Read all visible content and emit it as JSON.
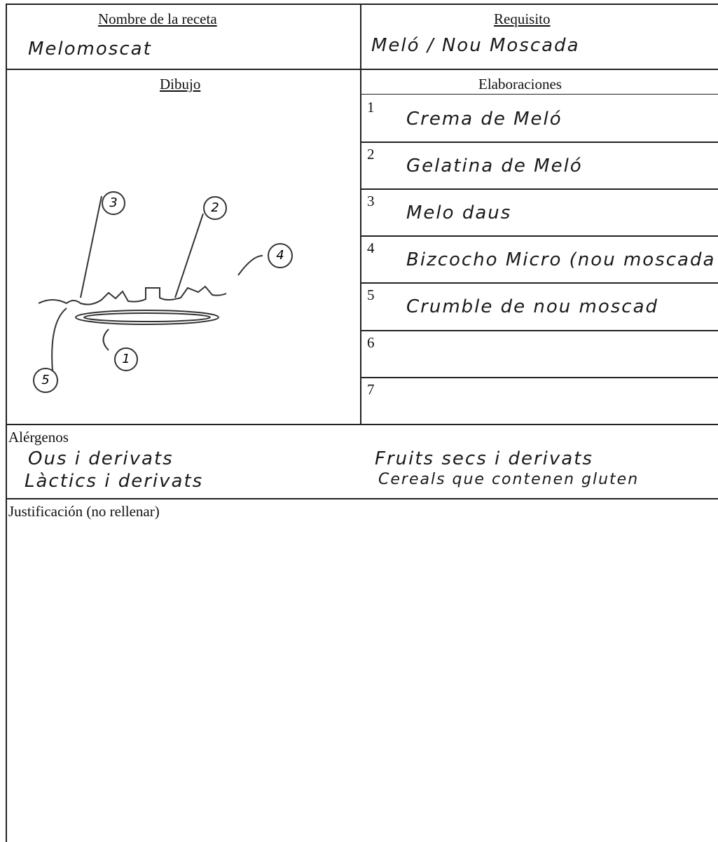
{
  "header": {
    "name_label": "Nombre de la receta",
    "name_value": "Melomoscat",
    "requirement_label": "Requisito",
    "requirement_value": "Meló / Nou Moscada"
  },
  "drawing": {
    "label": "Dibujo",
    "callouts": [
      "3",
      "2",
      "4",
      "5",
      "1"
    ]
  },
  "elaboraciones": {
    "label": "Elaboraciones",
    "rows": [
      {
        "number": "1",
        "text": "Crema de Meló"
      },
      {
        "number": "2",
        "text": "Gelatina de Meló"
      },
      {
        "number": "3",
        "text": "Melo daus"
      },
      {
        "number": "4",
        "text": "Bizcocho Micro (nou moscada"
      },
      {
        "number": "5",
        "text": "Crumble de nou moscad"
      },
      {
        "number": "6",
        "text": ""
      },
      {
        "number": "7",
        "text": ""
      }
    ]
  },
  "allergens": {
    "label": "Alérgenos",
    "items": [
      "Ous i derivats",
      "Fruits secs i derivats",
      "Làctics i derivats",
      "Cereals que contenen gluten"
    ]
  },
  "justification": {
    "label": "Justificación (no rellenar)"
  }
}
